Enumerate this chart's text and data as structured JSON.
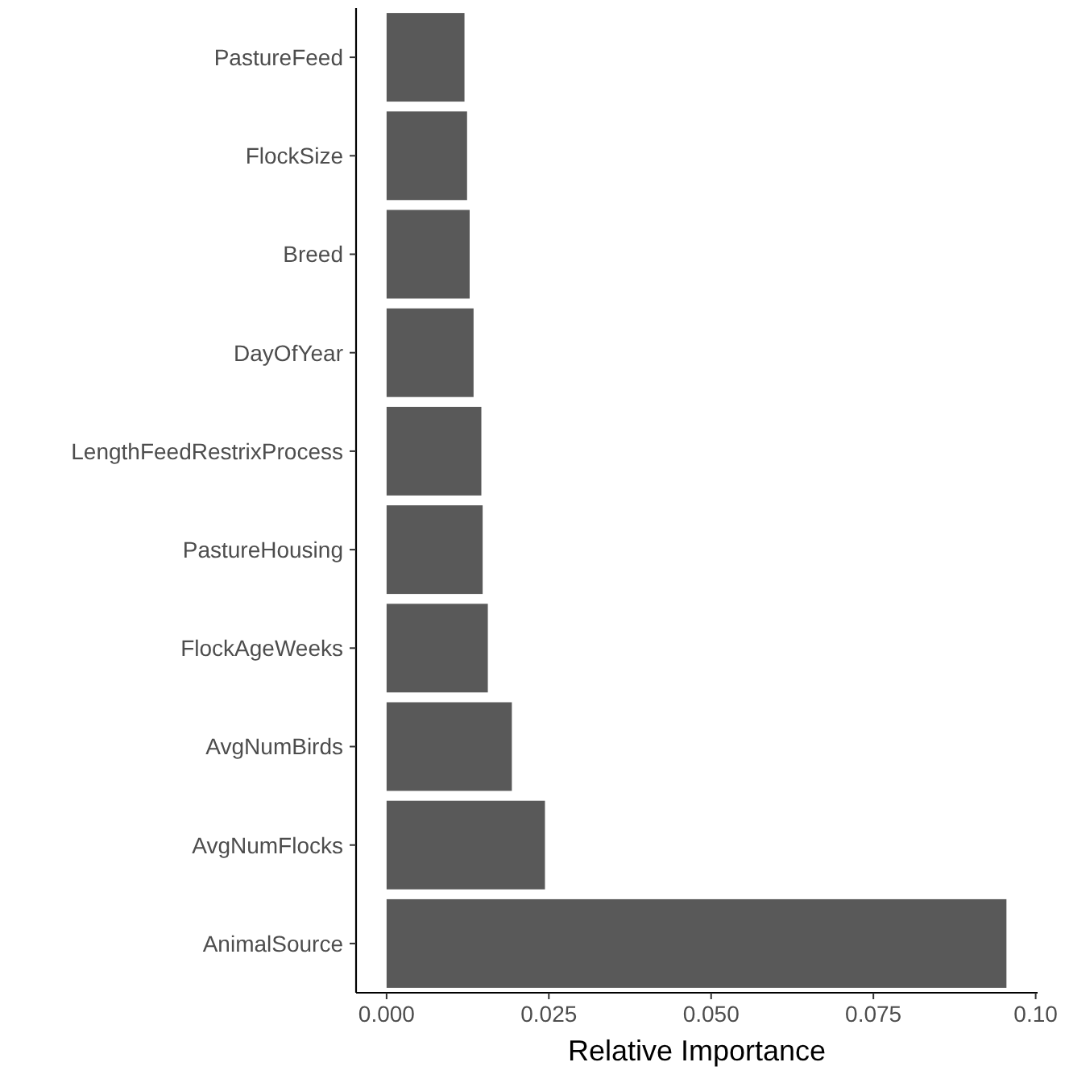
{
  "chart_data": {
    "type": "bar",
    "orientation": "horizontal",
    "xlabel": "Relative Importance",
    "categories": [
      "PastureFeed",
      "FlockSize",
      "Breed",
      "DayOfYear",
      "LengthFeedRestrixProcess",
      "PastureHousing",
      "FlockAgeWeeks",
      "AvgNumBirds",
      "AvgNumFlocks",
      "AnimalSource"
    ],
    "values": [
      0.012,
      0.0124,
      0.0128,
      0.0134,
      0.0146,
      0.0148,
      0.0156,
      0.0193,
      0.0244,
      0.0955
    ],
    "color": "#595959",
    "xlim": [
      -0.0047,
      0.1003
    ],
    "xticks": [
      {
        "value": 0,
        "label": "0.000"
      },
      {
        "value": 0.025,
        "label": "0.025"
      },
      {
        "value": 0.05,
        "label": "0.050"
      },
      {
        "value": 0.075,
        "label": "0.075"
      },
      {
        "value": 0.1,
        "label": "0.10"
      }
    ],
    "grid": false
  }
}
